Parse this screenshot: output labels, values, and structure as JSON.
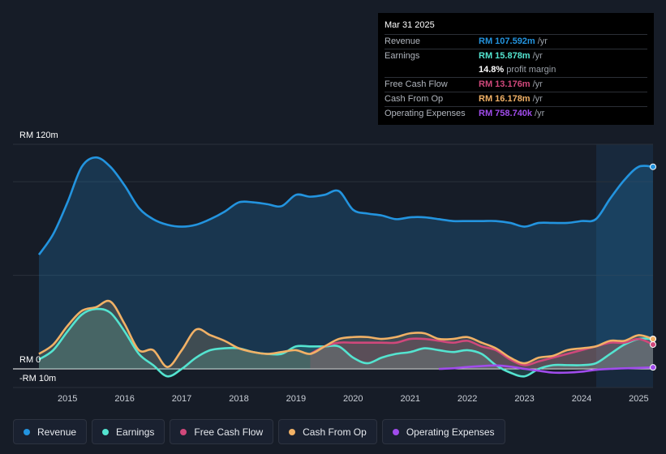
{
  "chart_data": {
    "type": "area",
    "y_unit_labels": {
      "top": "RM 120m",
      "zero": "RM 0",
      "bottom": "-RM 10m"
    },
    "ylim": [
      -10,
      120
    ],
    "x_ticks": [
      "2015",
      "2016",
      "2017",
      "2018",
      "2019",
      "2020",
      "2021",
      "2022",
      "2023",
      "2024",
      "2025"
    ],
    "xlim": [
      2014.5,
      2025.25
    ],
    "series": [
      {
        "name": "Revenue",
        "color": "#2394df",
        "points": [
          [
            2014.5,
            61
          ],
          [
            2014.75,
            72
          ],
          [
            2015.0,
            89
          ],
          [
            2015.25,
            108
          ],
          [
            2015.5,
            113
          ],
          [
            2015.75,
            108
          ],
          [
            2016.0,
            98
          ],
          [
            2016.25,
            86
          ],
          [
            2016.5,
            80
          ],
          [
            2016.75,
            77
          ],
          [
            2017.0,
            76
          ],
          [
            2017.25,
            77
          ],
          [
            2017.5,
            80
          ],
          [
            2017.75,
            84
          ],
          [
            2018.0,
            89
          ],
          [
            2018.25,
            89
          ],
          [
            2018.5,
            88
          ],
          [
            2018.75,
            87
          ],
          [
            2019.0,
            93
          ],
          [
            2019.25,
            92
          ],
          [
            2019.5,
            93
          ],
          [
            2019.75,
            95
          ],
          [
            2020.0,
            85
          ],
          [
            2020.25,
            83
          ],
          [
            2020.5,
            82
          ],
          [
            2020.75,
            80
          ],
          [
            2021.0,
            81
          ],
          [
            2021.25,
            81
          ],
          [
            2021.5,
            80
          ],
          [
            2021.75,
            79
          ],
          [
            2022.0,
            79
          ],
          [
            2022.25,
            79
          ],
          [
            2022.5,
            79
          ],
          [
            2022.75,
            78
          ],
          [
            2023.0,
            76
          ],
          [
            2023.25,
            78
          ],
          [
            2023.5,
            78
          ],
          [
            2023.75,
            78
          ],
          [
            2024.0,
            79
          ],
          [
            2024.25,
            80
          ],
          [
            2024.5,
            91
          ],
          [
            2024.75,
            101
          ],
          [
            2025.0,
            108
          ],
          [
            2025.25,
            108
          ]
        ]
      },
      {
        "name": "Earnings",
        "color": "#54e4d0",
        "points": [
          [
            2014.5,
            5
          ],
          [
            2014.75,
            10
          ],
          [
            2015.0,
            20
          ],
          [
            2015.25,
            29
          ],
          [
            2015.5,
            32
          ],
          [
            2015.75,
            30
          ],
          [
            2016.0,
            20
          ],
          [
            2016.25,
            8
          ],
          [
            2016.5,
            2
          ],
          [
            2016.75,
            -4
          ],
          [
            2017.0,
            0
          ],
          [
            2017.25,
            6
          ],
          [
            2017.5,
            10
          ],
          [
            2017.75,
            11
          ],
          [
            2018.0,
            11
          ],
          [
            2018.25,
            9
          ],
          [
            2018.5,
            8
          ],
          [
            2018.75,
            8
          ],
          [
            2019.0,
            12
          ],
          [
            2019.25,
            12
          ],
          [
            2019.5,
            12
          ],
          [
            2019.75,
            12
          ],
          [
            2020.0,
            6
          ],
          [
            2020.25,
            3
          ],
          [
            2020.5,
            6
          ],
          [
            2020.75,
            8
          ],
          [
            2021.0,
            9
          ],
          [
            2021.25,
            11
          ],
          [
            2021.5,
            10
          ],
          [
            2021.75,
            9
          ],
          [
            2022.0,
            10
          ],
          [
            2022.25,
            8
          ],
          [
            2022.5,
            2
          ],
          [
            2022.75,
            -2
          ],
          [
            2023.0,
            -4
          ],
          [
            2023.25,
            0
          ],
          [
            2023.5,
            2
          ],
          [
            2023.75,
            2
          ],
          [
            2024.0,
            2
          ],
          [
            2024.25,
            3
          ],
          [
            2024.5,
            8
          ],
          [
            2024.75,
            13
          ],
          [
            2025.0,
            16
          ],
          [
            2025.25,
            16
          ]
        ]
      },
      {
        "name": "Free Cash Flow",
        "color": "#d0487b",
        "points": [
          [
            2019.25,
            8
          ],
          [
            2019.5,
            12
          ],
          [
            2019.75,
            14
          ],
          [
            2020.0,
            14
          ],
          [
            2020.25,
            14
          ],
          [
            2020.5,
            14
          ],
          [
            2020.75,
            14
          ],
          [
            2021.0,
            16
          ],
          [
            2021.25,
            16
          ],
          [
            2021.5,
            15
          ],
          [
            2021.75,
            14
          ],
          [
            2022.0,
            15
          ],
          [
            2022.25,
            12
          ],
          [
            2022.5,
            10
          ],
          [
            2022.75,
            5
          ],
          [
            2023.0,
            2
          ],
          [
            2023.25,
            4
          ],
          [
            2023.5,
            6
          ],
          [
            2023.75,
            8
          ],
          [
            2024.0,
            10
          ],
          [
            2024.25,
            12
          ],
          [
            2024.5,
            14
          ],
          [
            2024.75,
            14
          ],
          [
            2025.0,
            16
          ],
          [
            2025.25,
            13
          ]
        ]
      },
      {
        "name": "Cash From Op",
        "color": "#f1b166",
        "points": [
          [
            2014.5,
            8
          ],
          [
            2014.75,
            13
          ],
          [
            2015.0,
            23
          ],
          [
            2015.25,
            31
          ],
          [
            2015.5,
            33
          ],
          [
            2015.75,
            36
          ],
          [
            2016.0,
            24
          ],
          [
            2016.25,
            10
          ],
          [
            2016.5,
            10
          ],
          [
            2016.75,
            1
          ],
          [
            2017.0,
            10
          ],
          [
            2017.25,
            21
          ],
          [
            2017.5,
            18
          ],
          [
            2017.75,
            15
          ],
          [
            2018.0,
            11
          ],
          [
            2018.25,
            9
          ],
          [
            2018.5,
            8
          ],
          [
            2018.75,
            9
          ],
          [
            2019.0,
            10
          ],
          [
            2019.25,
            8
          ],
          [
            2019.5,
            12
          ],
          [
            2019.75,
            16
          ],
          [
            2020.0,
            17
          ],
          [
            2020.25,
            17
          ],
          [
            2020.5,
            16
          ],
          [
            2020.75,
            17
          ],
          [
            2021.0,
            19
          ],
          [
            2021.25,
            19
          ],
          [
            2021.5,
            16
          ],
          [
            2021.75,
            16
          ],
          [
            2022.0,
            17
          ],
          [
            2022.25,
            14
          ],
          [
            2022.5,
            11
          ],
          [
            2022.75,
            6
          ],
          [
            2023.0,
            3
          ],
          [
            2023.25,
            6
          ],
          [
            2023.5,
            7
          ],
          [
            2023.75,
            10
          ],
          [
            2024.0,
            11
          ],
          [
            2024.25,
            12
          ],
          [
            2024.5,
            15
          ],
          [
            2024.75,
            15
          ],
          [
            2025.0,
            18
          ],
          [
            2025.25,
            16
          ]
        ]
      },
      {
        "name": "Operating Expenses",
        "color": "#a04cec",
        "points": [
          [
            2021.5,
            0
          ],
          [
            2021.75,
            0.3
          ],
          [
            2022.0,
            1
          ],
          [
            2022.25,
            1.5
          ],
          [
            2022.5,
            1.8
          ],
          [
            2022.75,
            1.2
          ],
          [
            2023.0,
            0
          ],
          [
            2023.25,
            -1
          ],
          [
            2023.5,
            -2
          ],
          [
            2023.75,
            -2
          ],
          [
            2024.0,
            -1.5
          ],
          [
            2024.25,
            -0.5
          ],
          [
            2024.5,
            0
          ],
          [
            2024.75,
            0.3
          ],
          [
            2025.0,
            0.5
          ],
          [
            2025.25,
            0.8
          ]
        ]
      }
    ]
  },
  "tooltip": {
    "date": "Mar 31 2025",
    "rows": [
      {
        "label": "Revenue",
        "value": "RM 107.592m",
        "unit": "/yr",
        "color": "#2394df"
      },
      {
        "label": "Earnings",
        "value": "RM 15.878m",
        "unit": "/yr",
        "color": "#54e4d0"
      },
      {
        "label": "",
        "value": "14.8%",
        "unit": "profit margin",
        "color": "#ffffff"
      },
      {
        "label": "Free Cash Flow",
        "value": "RM 13.176m",
        "unit": "/yr",
        "color": "#d0487b"
      },
      {
        "label": "Cash From Op",
        "value": "RM 16.178m",
        "unit": "/yr",
        "color": "#f1b166"
      },
      {
        "label": "Operating Expenses",
        "value": "RM 758.740k",
        "unit": "/yr",
        "color": "#a04cec"
      }
    ]
  },
  "legend": [
    {
      "label": "Revenue",
      "color": "#2394df"
    },
    {
      "label": "Earnings",
      "color": "#54e4d0"
    },
    {
      "label": "Free Cash Flow",
      "color": "#d0487b"
    },
    {
      "label": "Cash From Op",
      "color": "#f1b166"
    },
    {
      "label": "Operating Expenses",
      "color": "#a04cec"
    }
  ]
}
